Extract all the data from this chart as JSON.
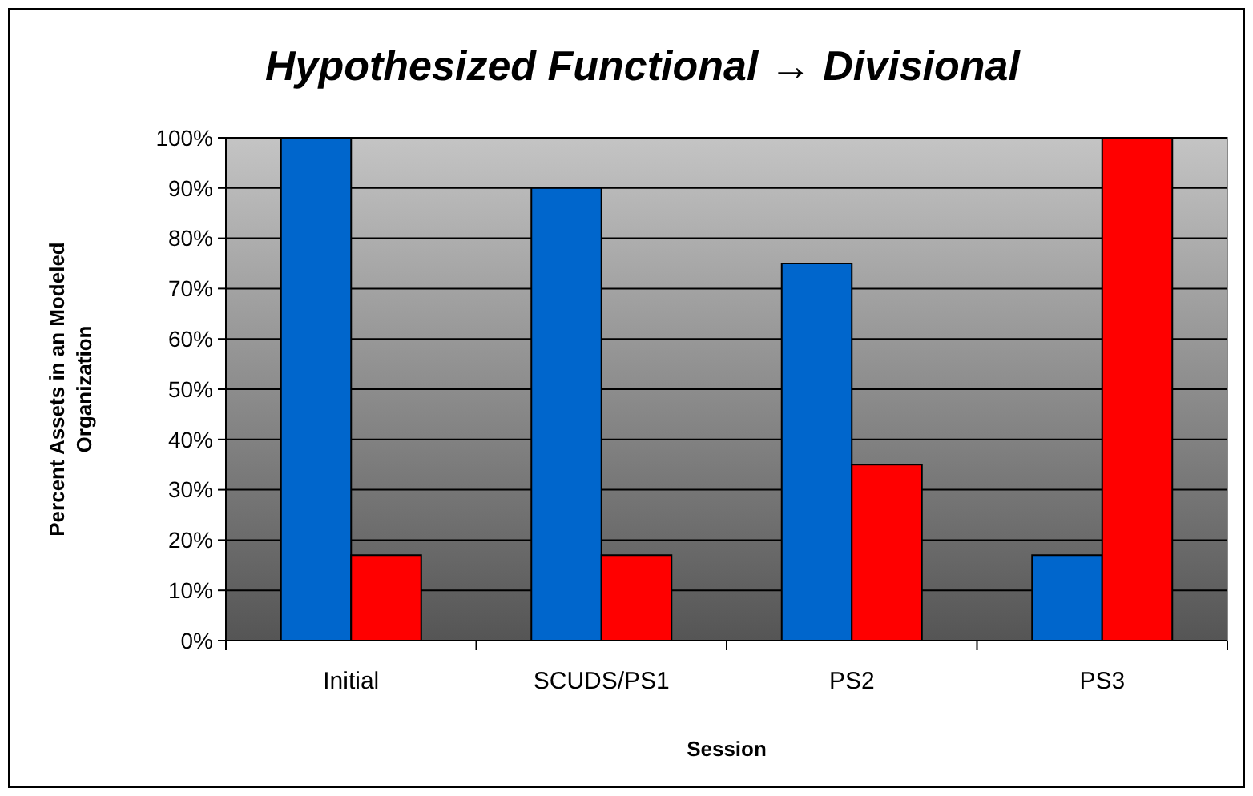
{
  "chart_data": {
    "type": "bar",
    "title": "Hypothesized Functional → Divisional",
    "xlabel": "Session",
    "ylabel": "Percent Assets in an Modeled\nOrganization",
    "categories": [
      "Initial",
      "SCUDS/PS1",
      "PS2",
      "PS3"
    ],
    "series": [
      {
        "color": "#0066cc",
        "values": [
          100,
          90,
          75,
          17
        ]
      },
      {
        "color": "#ff0000",
        "values": [
          17,
          17,
          35,
          100
        ]
      }
    ],
    "ylim": [
      0,
      100
    ],
    "yticks": [
      {
        "value": 0,
        "label": "0%"
      },
      {
        "value": 10,
        "label": "10%"
      },
      {
        "value": 20,
        "label": "20%"
      },
      {
        "value": 30,
        "label": "30%"
      },
      {
        "value": 40,
        "label": "40%"
      },
      {
        "value": 50,
        "label": "50%"
      },
      {
        "value": 60,
        "label": "60%"
      },
      {
        "value": 70,
        "label": "70%"
      },
      {
        "value": 80,
        "label": "80%"
      },
      {
        "value": 90,
        "label": "90%"
      },
      {
        "value": 100,
        "label": "100%"
      }
    ],
    "grid": "y"
  }
}
